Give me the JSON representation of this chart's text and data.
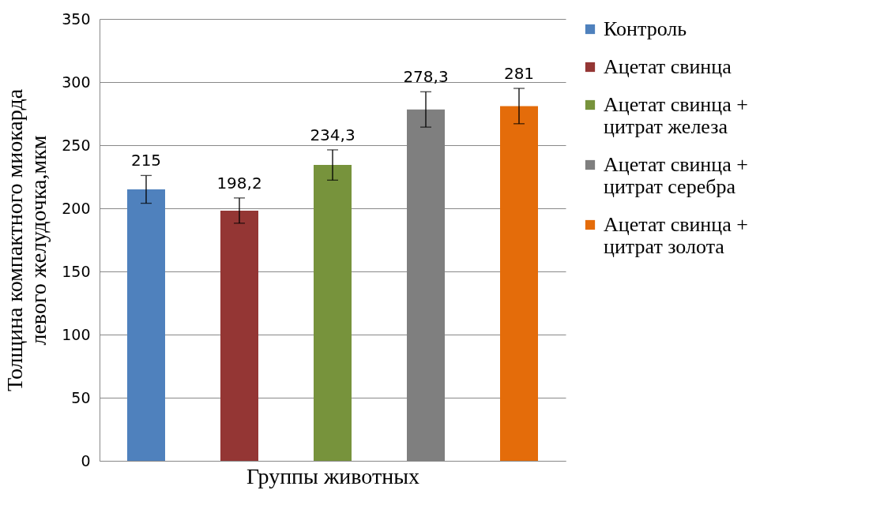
{
  "chart_data": {
    "type": "bar",
    "xlabel": "Группы животных",
    "ylabel": "Толщина компактного миокарда левого желудочка,мкм",
    "categories": [
      null,
      null,
      null,
      null,
      null
    ],
    "series": [
      {
        "name": "Контроль",
        "color": "#4f81bd",
        "values": [
          215,
          null,
          null,
          null,
          null
        ],
        "value_labels": [
          "215",
          null,
          null,
          null,
          null
        ],
        "errors": [
          11,
          null,
          null,
          null,
          null
        ]
      },
      {
        "name": "Ацетат свинца",
        "color": "#943634",
        "values": [
          null,
          198.2,
          null,
          null,
          null
        ],
        "value_labels": [
          null,
          "198,2",
          null,
          null,
          null
        ],
        "errors": [
          null,
          10,
          null,
          null,
          null
        ]
      },
      {
        "name": "Ацетат свинца + цитрат железа",
        "color": "#77933c",
        "values": [
          null,
          null,
          234.3,
          null,
          null
        ],
        "value_labels": [
          null,
          null,
          "234,3",
          null,
          null
        ],
        "errors": [
          null,
          null,
          12,
          null,
          null
        ]
      },
      {
        "name": "Ацетат свинца + цитрат серебра",
        "color": "#7f7f7f",
        "values": [
          null,
          null,
          null,
          278.3,
          null
        ],
        "value_labels": [
          null,
          null,
          null,
          "278,3",
          null
        ],
        "errors": [
          null,
          null,
          null,
          14,
          null
        ]
      },
      {
        "name": "Ацетат свинца + цитрат золота",
        "color": "#e46c0a",
        "values": [
          null,
          null,
          null,
          null,
          281
        ],
        "value_labels": [
          null,
          null,
          null,
          null,
          "281"
        ],
        "errors": [
          null,
          null,
          null,
          null,
          14
        ]
      }
    ],
    "ylim": [
      0,
      350
    ],
    "yticks": [
      0,
      50,
      100,
      150,
      200,
      250,
      300,
      350
    ],
    "grid": "y",
    "legend": "right"
  }
}
